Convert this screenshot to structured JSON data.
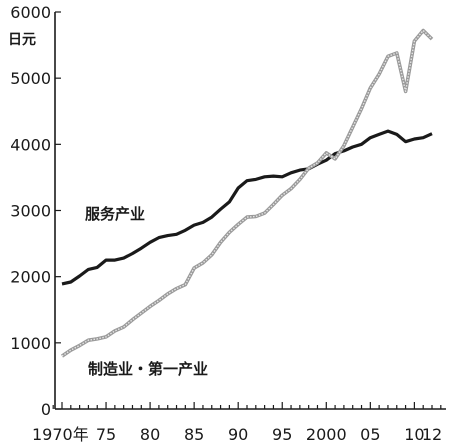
{
  "chart_data": {
    "type": "line",
    "ylabel": "日元",
    "ylim": [
      0,
      6000
    ],
    "y_ticks": [
      "0",
      "1000",
      "2000",
      "3000",
      "4000",
      "5000",
      "6000"
    ],
    "x_ticks": [
      {
        "value": 1970,
        "label": "1970年"
      },
      {
        "value": 1975,
        "label": "75"
      },
      {
        "value": 1980,
        "label": "80"
      },
      {
        "value": 1985,
        "label": "85"
      },
      {
        "value": 1990,
        "label": "90"
      },
      {
        "value": 1995,
        "label": "95"
      },
      {
        "value": 2000,
        "label": "2000"
      },
      {
        "value": 2005,
        "label": "05"
      },
      {
        "value": 2010,
        "label": "10"
      },
      {
        "value": 2012,
        "label": "12"
      }
    ],
    "xlim": [
      1969,
      2013
    ],
    "grid": false,
    "series": [
      {
        "name": "服务产业",
        "color": "#1a1a1a",
        "style": "solid",
        "x": [
          1970,
          1971,
          1972,
          1973,
          1974,
          1975,
          1976,
          1977,
          1978,
          1979,
          1980,
          1981,
          1982,
          1983,
          1984,
          1985,
          1986,
          1987,
          1988,
          1989,
          1990,
          1991,
          1992,
          1993,
          1994,
          1995,
          1996,
          1997,
          1998,
          1999,
          2000,
          2001,
          2002,
          2003,
          2004,
          2005,
          2006,
          2007,
          2008,
          2009,
          2010,
          2011,
          2012
        ],
        "y": [
          1890,
          1920,
          2010,
          2110,
          2140,
          2250,
          2250,
          2280,
          2350,
          2430,
          2520,
          2590,
          2620,
          2640,
          2700,
          2780,
          2820,
          2900,
          3020,
          3130,
          3340,
          3450,
          3470,
          3510,
          3520,
          3510,
          3570,
          3610,
          3630,
          3700,
          3760,
          3860,
          3900,
          3960,
          4000,
          4100,
          4150,
          4200,
          4150,
          4040,
          4080,
          4100,
          4160
        ]
      },
      {
        "name": "制造业・第一产业",
        "color": "#9a9a9a",
        "style": "dotted",
        "x": [
          1970,
          1971,
          1972,
          1973,
          1974,
          1975,
          1976,
          1977,
          1978,
          1979,
          1980,
          1981,
          1982,
          1983,
          1984,
          1985,
          1986,
          1987,
          1988,
          1989,
          1990,
          1991,
          1992,
          1993,
          1994,
          1995,
          1996,
          1997,
          1998,
          1999,
          2000,
          2001,
          2002,
          2003,
          2004,
          2005,
          2006,
          2007,
          2008,
          2009,
          2010,
          2011,
          2012
        ],
        "y": [
          800,
          890,
          960,
          1040,
          1060,
          1090,
          1180,
          1240,
          1350,
          1450,
          1550,
          1640,
          1740,
          1820,
          1880,
          2130,
          2210,
          2330,
          2520,
          2670,
          2790,
          2900,
          2910,
          2960,
          3090,
          3230,
          3330,
          3470,
          3640,
          3720,
          3870,
          3780,
          3980,
          4260,
          4540,
          4850,
          5060,
          5330,
          5380,
          4800,
          5560,
          5720,
          5590
        ]
      }
    ],
    "annotations": [
      {
        "text": "服务产业",
        "series": 0
      },
      {
        "text": "制造业・第一产业",
        "series": 1
      }
    ]
  }
}
